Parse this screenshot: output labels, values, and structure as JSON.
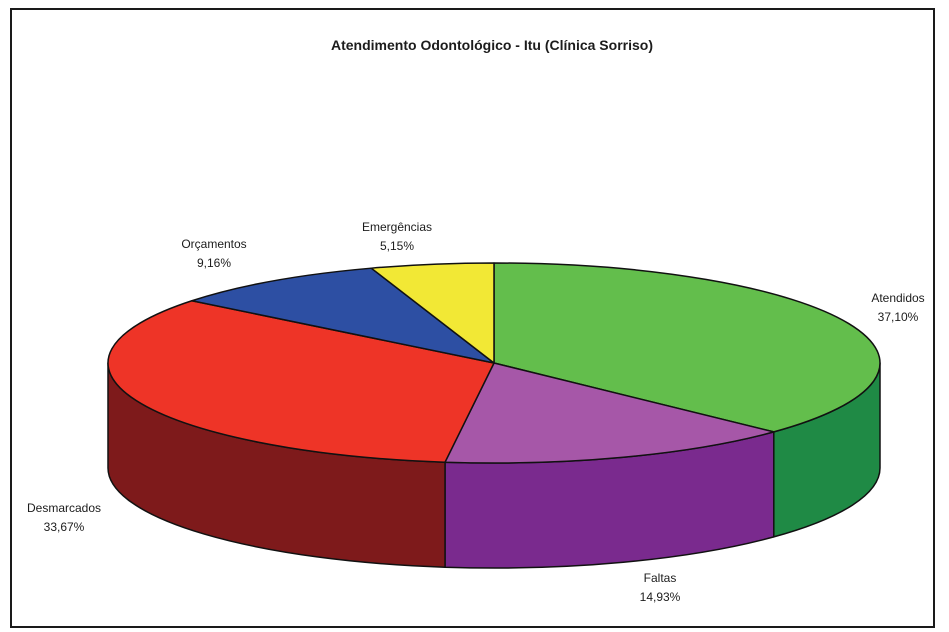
{
  "chart_data": {
    "type": "pie",
    "title": "Atendimento Odontológico - Itu (Clínica Sorriso)",
    "slices": [
      {
        "label": "Atendidos",
        "value": 37.1,
        "value_label": "37,10%",
        "top_color": "#63be4c",
        "side_color": "#1f8a45"
      },
      {
        "label": "Faltas",
        "value": 14.93,
        "value_label": "14,93%",
        "top_color": "#a657a8",
        "side_color": "#7a2a8e"
      },
      {
        "label": "Desmarcados",
        "value": 33.67,
        "value_label": "33,67%",
        "top_color": "#ee3427",
        "side_color": "#7e1a1b"
      },
      {
        "label": "Orçamentos",
        "value": 9.16,
        "value_label": "9,16%",
        "top_color": "#2d4fa3",
        "side_color": "#1e3a80"
      },
      {
        "label": "Emergências",
        "value": 5.15,
        "value_label": "5,15%",
        "top_color": "#f2e835",
        "side_color": "#b8ad10"
      }
    ],
    "start": "12 o'clock",
    "direction": "clockwise",
    "style": "3d",
    "legend": "none"
  }
}
